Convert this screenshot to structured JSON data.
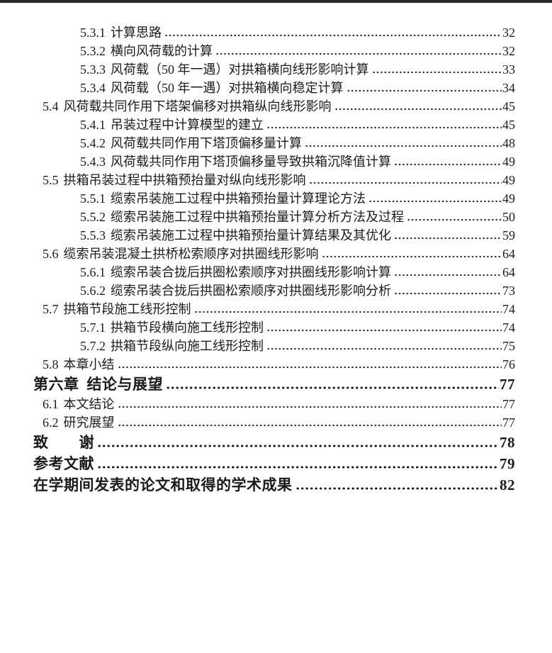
{
  "colors": {
    "page_background": "#ffffff",
    "top_edge_bar": "#2a2a2a",
    "text": "#1b1b1b",
    "dot_leader": "#1f1f1f"
  },
  "toc": {
    "entries": [
      {
        "level": 3,
        "num": "5.3.1",
        "title": "计算思路",
        "page": "32"
      },
      {
        "level": 3,
        "num": "5.3.2",
        "title": "横向风荷载的计算",
        "page": "32"
      },
      {
        "level": 3,
        "num": "5.3.3",
        "title": "风荷载（50 年一遇）对拱箱横向线形影响计算",
        "page": "33"
      },
      {
        "level": 3,
        "num": "5.3.4",
        "title": "风荷载（50 年一遇）对拱箱横向稳定计算",
        "page": "34"
      },
      {
        "level": 2,
        "num": "5.4",
        "title": "风荷载共同作用下塔架偏移对拱箱纵向线形影响",
        "page": "45"
      },
      {
        "level": 3,
        "num": "5.4.1",
        "title": "吊装过程中计算模型的建立",
        "page": "45"
      },
      {
        "level": 3,
        "num": "5.4.2",
        "title": "风荷载共同作用下塔顶偏移量计算",
        "page": "48"
      },
      {
        "level": 3,
        "num": "5.4.3",
        "title": "风荷载共同作用下塔顶偏移量导致拱箱沉降值计算",
        "page": "49"
      },
      {
        "level": 2,
        "num": "5.5",
        "title": "拱箱吊装过程中拱箱预抬量对纵向线形影响",
        "page": "49"
      },
      {
        "level": 3,
        "num": "5.5.1",
        "title": "缆索吊装施工过程中拱箱预抬量计算理论方法",
        "page": "49"
      },
      {
        "level": 3,
        "num": "5.5.2",
        "title": "缆索吊装施工过程中拱箱预抬量计算分析方法及过程",
        "page": "50"
      },
      {
        "level": 3,
        "num": "5.5.3",
        "title": "缆索吊装施工过程中拱箱预抬量计算结果及其优化",
        "page": "59"
      },
      {
        "level": 2,
        "num": "5.6",
        "title": "缆索吊装混凝土拱桥松索顺序对拱圈线形影响",
        "page": "64"
      },
      {
        "level": 3,
        "num": "5.6.1",
        "title": "缆索吊装合拢后拱圈松索顺序对拱圈线形影响计算",
        "page": "64"
      },
      {
        "level": 3,
        "num": "5.6.2",
        "title": "缆索吊装合拢后拱圈松索顺序对拱圈线形影响分析",
        "page": "73"
      },
      {
        "level": 2,
        "num": "5.7",
        "title": "拱箱节段施工线形控制",
        "page": "74"
      },
      {
        "level": 3,
        "num": "5.7.1",
        "title": "拱箱节段横向施工线形控制",
        "page": "74"
      },
      {
        "level": 3,
        "num": "5.7.2",
        "title": "拱箱节段纵向施工线形控制",
        "page": "75"
      },
      {
        "level": 2,
        "num": "5.8",
        "title": "本章小结",
        "page": "76"
      },
      {
        "level": 1,
        "num": "第六章",
        "title": "结论与展望",
        "page": "77"
      },
      {
        "level": 2,
        "num": "6.1",
        "title": "本文结论",
        "page": "77"
      },
      {
        "level": 2,
        "num": "6.2",
        "title": "研究展望",
        "page": "77"
      },
      {
        "level": 1,
        "num": "",
        "title": "致　　谢",
        "page": "78"
      },
      {
        "level": 1,
        "num": "",
        "title": "参考文献",
        "page": "79"
      },
      {
        "level": 1,
        "num": "",
        "title": "在学期间发表的论文和取得的学术成果",
        "page": "82"
      }
    ]
  }
}
